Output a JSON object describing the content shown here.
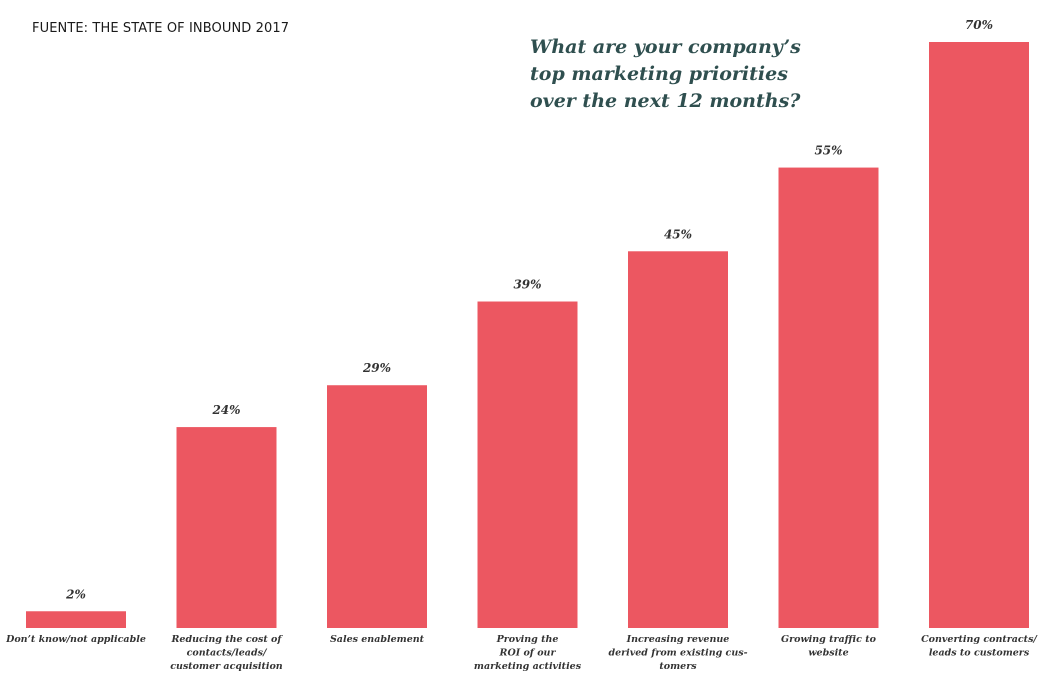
{
  "source": "FUENTE: THE STATE OF INBOUND 2017",
  "title_lines": [
    "What are your company’s",
    "top marketing priorities",
    "over the next 12 months?"
  ],
  "colors": {
    "bar": "#ec5761",
    "text": "#333333",
    "title": "#2f4f4f"
  },
  "chart_data": {
    "type": "bar",
    "title": "What are your company’s top marketing priorities over the next 12 months?",
    "xlabel": "",
    "ylabel": "",
    "ylim": [
      0,
      70
    ],
    "grid": false,
    "categories": [
      [
        "Don’t know/not applicable"
      ],
      [
        "Reducing the cost of",
        "contacts/leads/",
        "customer acquisition"
      ],
      [
        "Sales enablement"
      ],
      [
        "Proving the",
        "ROI of our",
        "marketing activities"
      ],
      [
        "Increasing revenue",
        "derived from existing cus-",
        "tomers"
      ],
      [
        "Growing traffic to",
        "website"
      ],
      [
        "Converting contracts/",
        "leads to customers"
      ]
    ],
    "values": [
      2,
      24,
      29,
      39,
      45,
      55,
      70
    ],
    "value_labels": [
      "2%",
      "24%",
      "29%",
      "39%",
      "45%",
      "55%",
      "70%"
    ]
  }
}
